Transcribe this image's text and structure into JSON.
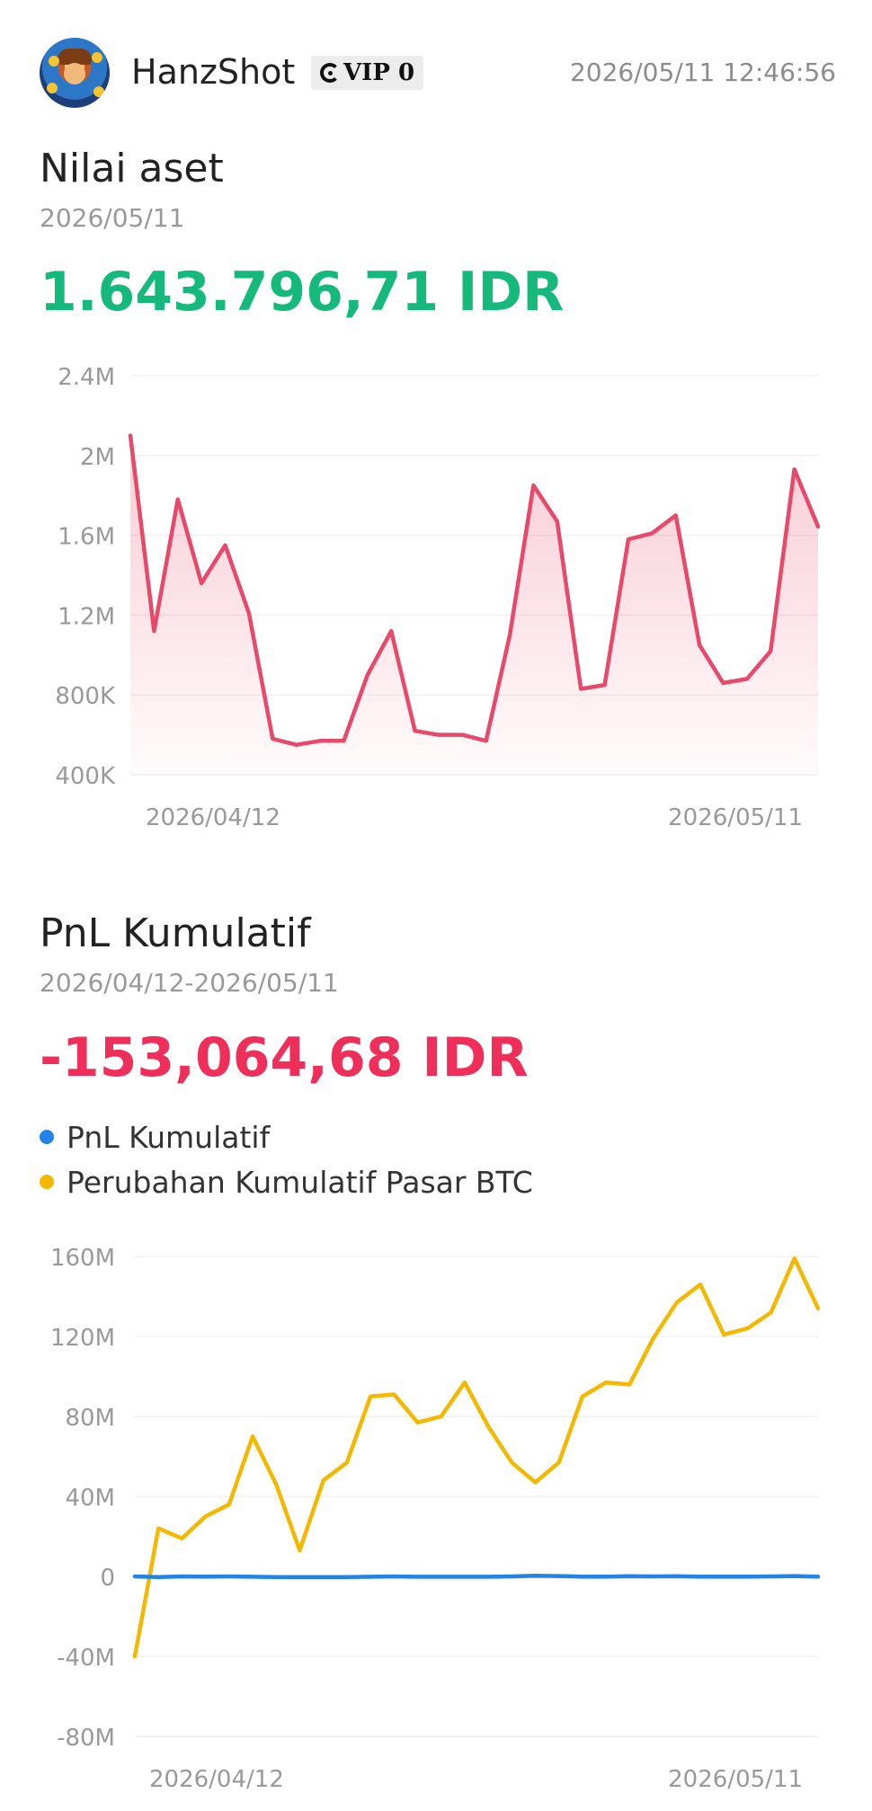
{
  "header": {
    "username": "HanzShot",
    "vip_label": "VIP 0",
    "timestamp": "2026/05/11 12:46:56"
  },
  "asset_section": {
    "title": "Nilai aset",
    "date": "2026/05/11",
    "value": "1.643.796,71 IDR"
  },
  "pnl_section": {
    "title": "PnL Kumulatif",
    "date_range": "2026/04/12-2026/05/11",
    "value": "-153,064,68 IDR",
    "legend": [
      {
        "label": "PnL Kumulatif",
        "color": "#2283e8"
      },
      {
        "label": "Perubahan Kumulatif Pasar BTC",
        "color": "#f5b800"
      }
    ]
  },
  "colors": {
    "asset_line": "#e8486a",
    "positive": "#14b97b",
    "negative": "#ef2e5a"
  },
  "chart_data": [
    {
      "type": "area",
      "y_ticks": [
        "2.4M",
        "2M",
        "1.6M",
        "1.2M",
        "800K",
        "400K"
      ],
      "y_tick_values": [
        2400000,
        2000000,
        1600000,
        1200000,
        800000,
        400000
      ],
      "ylim": [
        400000,
        2400000
      ],
      "x_tick_labels": [
        "2026/04/12",
        "2026/05/11"
      ],
      "x": [
        "2026/04/12",
        "2026/04/13",
        "2026/04/14",
        "2026/04/15",
        "2026/04/16",
        "2026/04/17",
        "2026/04/18",
        "2026/04/19",
        "2026/04/20",
        "2026/04/21",
        "2026/04/22",
        "2026/04/23",
        "2026/04/24",
        "2026/04/25",
        "2026/04/26",
        "2026/04/27",
        "2026/04/28",
        "2026/04/29",
        "2026/04/30",
        "2026/05/01",
        "2026/05/02",
        "2026/05/03",
        "2026/05/04",
        "2026/05/05",
        "2026/05/06",
        "2026/05/07",
        "2026/05/08",
        "2026/05/09",
        "2026/05/10",
        "2026/05/11"
      ],
      "values": [
        2100000,
        1120000,
        1780000,
        1360000,
        1550000,
        1210000,
        580000,
        550000,
        570000,
        570000,
        900000,
        1120000,
        620000,
        600000,
        600000,
        570000,
        1100000,
        1850000,
        1670000,
        830000,
        850000,
        1580000,
        1610000,
        1700000,
        1050000,
        860000,
        880000,
        1020000,
        1930000,
        1643796.71
      ],
      "grid": true
    },
    {
      "type": "line",
      "y_ticks": [
        "160M",
        "120M",
        "80M",
        "40M",
        "0",
        "-40M",
        "-80M"
      ],
      "y_tick_values": [
        160000000,
        120000000,
        80000000,
        40000000,
        0,
        -40000000,
        -80000000
      ],
      "ylim": [
        -80000000,
        160000000
      ],
      "x_tick_labels": [
        "2026/04/12",
        "2026/05/11"
      ],
      "x": [
        "2026/04/12",
        "2026/04/13",
        "2026/04/14",
        "2026/04/15",
        "2026/04/16",
        "2026/04/17",
        "2026/04/18",
        "2026/04/19",
        "2026/04/20",
        "2026/04/21",
        "2026/04/22",
        "2026/04/23",
        "2026/04/24",
        "2026/04/25",
        "2026/04/26",
        "2026/04/27",
        "2026/04/28",
        "2026/04/29",
        "2026/04/30",
        "2026/05/01",
        "2026/05/02",
        "2026/05/03",
        "2026/05/04",
        "2026/05/05",
        "2026/05/06",
        "2026/05/07",
        "2026/05/08",
        "2026/05/09",
        "2026/05/10",
        "2026/05/11"
      ],
      "series": [
        {
          "name": "PnL Kumulatif",
          "color": "#2283e8",
          "values": [
            0,
            -300000,
            0,
            -100000,
            0,
            -200000,
            -300000,
            -300000,
            -300000,
            -300000,
            -200000,
            0,
            -200000,
            -200000,
            -200000,
            -200000,
            0,
            300000,
            200000,
            -100000,
            -100000,
            100000,
            0,
            100000,
            -100000,
            -100000,
            -100000,
            0,
            200000,
            -153064.68
          ]
        },
        {
          "name": "Perubahan Kumulatif Pasar BTC",
          "color": "#f5b800",
          "values": [
            -40000000,
            24000000,
            19000000,
            30000000,
            36000000,
            70000000,
            46000000,
            13000000,
            48000000,
            57000000,
            90000000,
            91000000,
            77000000,
            80000000,
            97000000,
            75000000,
            57000000,
            47000000,
            57000000,
            90000000,
            97000000,
            96000000,
            119000000,
            137000000,
            146000000,
            121000000,
            124000000,
            132000000,
            159000000,
            134000000
          ]
        }
      ],
      "grid": true
    }
  ]
}
